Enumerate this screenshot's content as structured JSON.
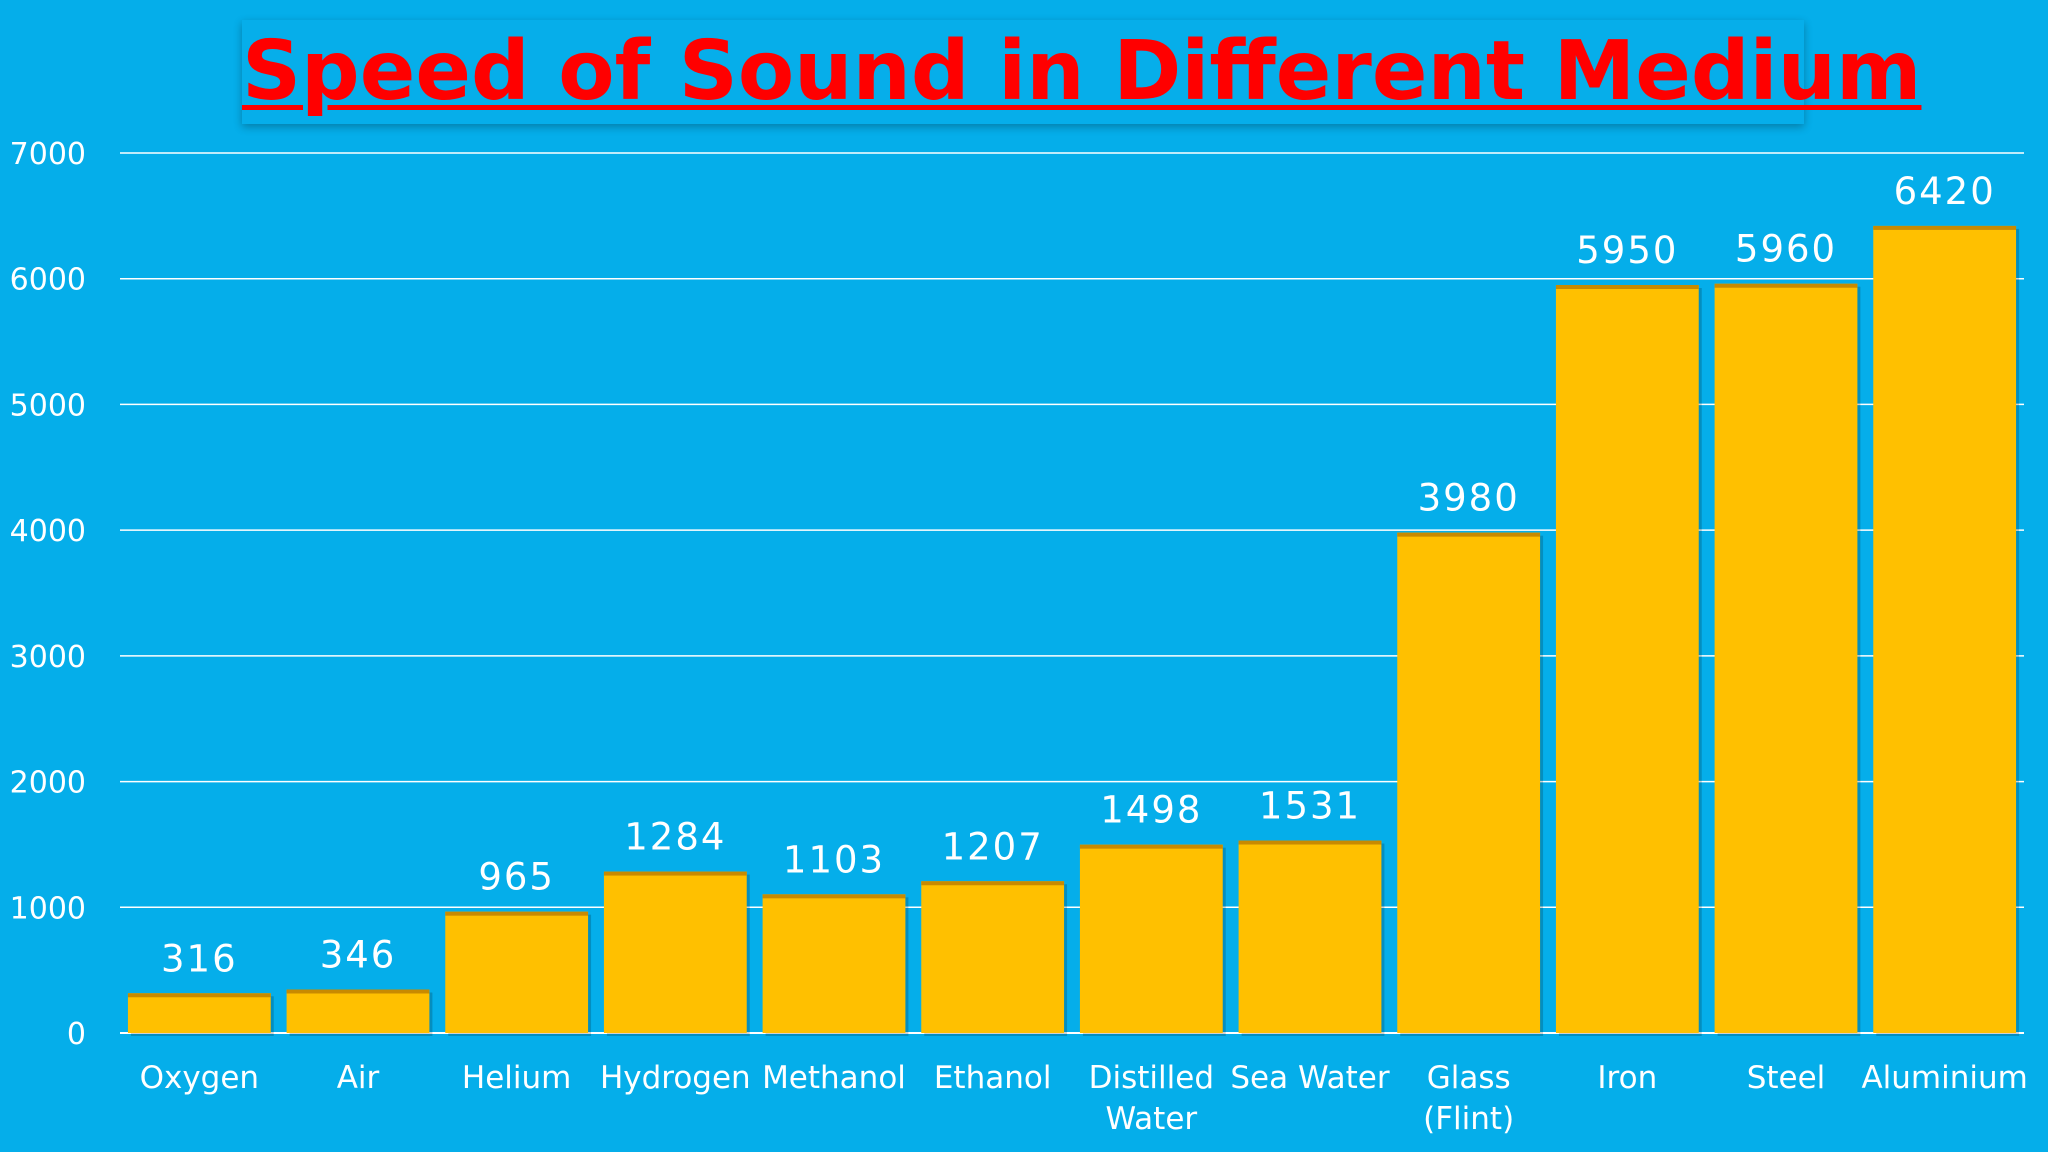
{
  "chart_data": {
    "type": "bar",
    "title": "Speed of Sound in Different Medium",
    "xlabel": "",
    "ylabel": "",
    "categories": [
      "Oxygen",
      "Air",
      "Helium",
      "Hydrogen",
      "Methanol",
      "Ethanol",
      "Distilled Water",
      "Sea Water",
      "Glass (Flint)",
      "Iron",
      "Steel",
      "Aluminium"
    ],
    "category_lines": [
      [
        "Oxygen"
      ],
      [
        "Air"
      ],
      [
        "Helium"
      ],
      [
        "Hydrogen"
      ],
      [
        "Methanol"
      ],
      [
        "Ethanol"
      ],
      [
        "Distilled",
        "Water"
      ],
      [
        "Sea Water"
      ],
      [
        "Glass",
        "(Flint)"
      ],
      [
        "Iron"
      ],
      [
        "Steel"
      ],
      [
        "Aluminium"
      ]
    ],
    "values": [
      316,
      346,
      965,
      1284,
      1103,
      1207,
      1498,
      1531,
      3980,
      5950,
      5960,
      6420
    ],
    "ylim": [
      0,
      7000
    ],
    "yticks": [
      0,
      1000,
      2000,
      3000,
      4000,
      5000,
      6000,
      7000
    ],
    "grid": true,
    "legend": "none",
    "colors": {
      "background": "#05AEEA",
      "bar": "#FFC000",
      "bar_shadow": "#C88A00",
      "title": "#FF0000",
      "text": "#FFFFFF",
      "gridline": "#FFFFFF"
    }
  }
}
